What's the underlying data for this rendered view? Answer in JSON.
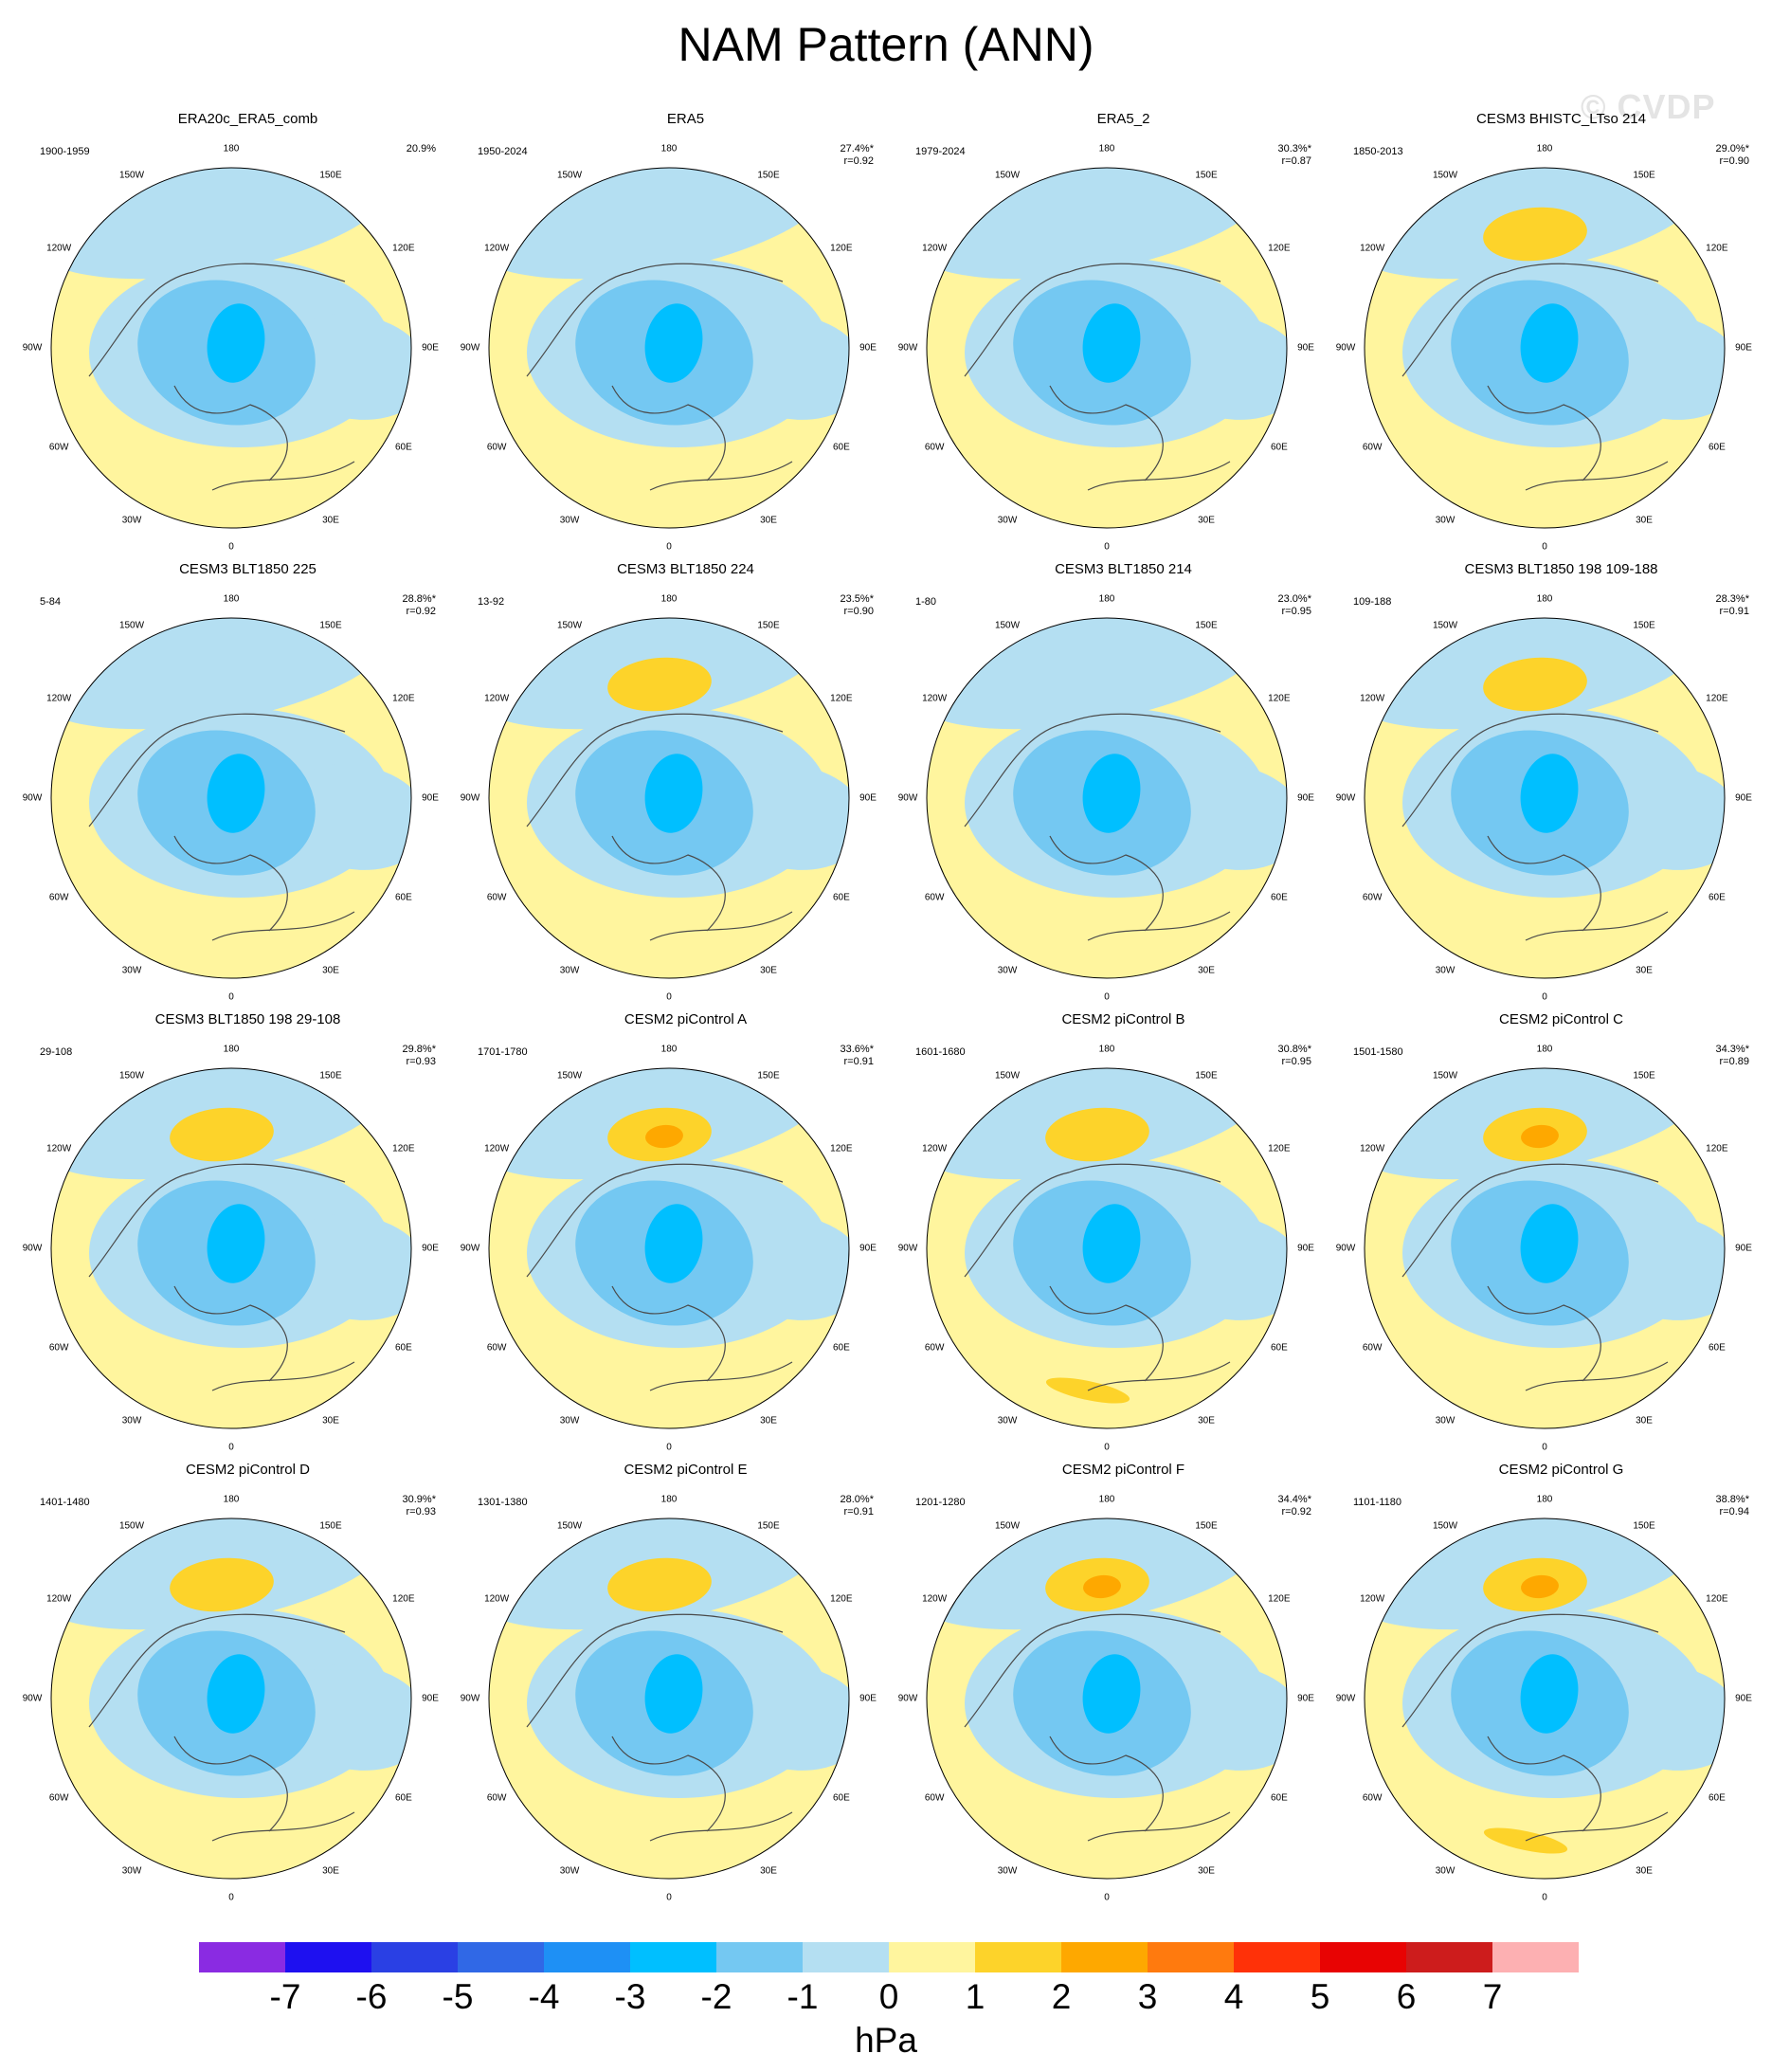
{
  "title": "NAM Pattern (ANN)",
  "watermark": "© CVDP",
  "longitude_labels": [
    "180",
    "150E",
    "120E",
    "90E",
    "60E",
    "30E",
    "0",
    "30W",
    "60W",
    "90W",
    "120W",
    "150W"
  ],
  "colorbar": {
    "units": "hPa",
    "tick_labels": [
      "-7",
      "-6",
      "-5",
      "-4",
      "-3",
      "-2",
      "-1",
      "0",
      "1",
      "2",
      "3",
      "4",
      "5",
      "6",
      "7"
    ],
    "colors": [
      "#8a2be2",
      "#1e10f0",
      "#2a40e4",
      "#3068e6",
      "#1e90f5",
      "#00bfff",
      "#74c8f2",
      "#b4dff2",
      "#fff59e",
      "#fdd32a",
      "#fea800",
      "#ff7a0e",
      "#ff3108",
      "#e80303",
      "#cd1c1c",
      "#fdb0b2"
    ]
  },
  "panels": [
    {
      "title": "ERA20c_ERA5_comb",
      "years": "1900-1959",
      "pct": "20.9%",
      "r": ""
    },
    {
      "title": "ERA5",
      "years": "1950-2024",
      "pct": "27.4%*",
      "r": "r=0.92"
    },
    {
      "title": "ERA5_2",
      "years": "1979-2024",
      "pct": "30.3%*",
      "r": "r=0.87"
    },
    {
      "title": "CESM3 BHISTC_LTso 214",
      "years": "1850-2013",
      "pct": "29.0%*",
      "r": "r=0.90"
    },
    {
      "title": "CESM3 BLT1850 225",
      "years": "5-84",
      "pct": "28.8%*",
      "r": "r=0.92"
    },
    {
      "title": "CESM3 BLT1850 224",
      "years": "13-92",
      "pct": "23.5%*",
      "r": "r=0.90"
    },
    {
      "title": "CESM3 BLT1850 214",
      "years": "1-80",
      "pct": "23.0%*",
      "r": "r=0.95"
    },
    {
      "title": "CESM3 BLT1850 198 109-188",
      "years": "109-188",
      "pct": "28.3%*",
      "r": "r=0.91"
    },
    {
      "title": "CESM3 BLT1850 198 29-108",
      "years": "29-108",
      "pct": "29.8%*",
      "r": "r=0.93"
    },
    {
      "title": "CESM2 piControl A",
      "years": "1701-1780",
      "pct": "33.6%*",
      "r": "r=0.91"
    },
    {
      "title": "CESM2 piControl B",
      "years": "1601-1680",
      "pct": "30.8%*",
      "r": "r=0.95"
    },
    {
      "title": "CESM2 piControl C",
      "years": "1501-1580",
      "pct": "34.3%*",
      "r": "r=0.89"
    },
    {
      "title": "CESM2 piControl D",
      "years": "1401-1480",
      "pct": "30.9%*",
      "r": "r=0.93"
    },
    {
      "title": "CESM2 piControl E",
      "years": "1301-1380",
      "pct": "28.0%*",
      "r": "r=0.91"
    },
    {
      "title": "CESM2 piControl F",
      "years": "1201-1280",
      "pct": "34.4%*",
      "r": "r=0.92"
    },
    {
      "title": "CESM2 piControl G",
      "years": "1101-1180",
      "pct": "38.8%*",
      "r": "r=0.94"
    }
  ]
}
